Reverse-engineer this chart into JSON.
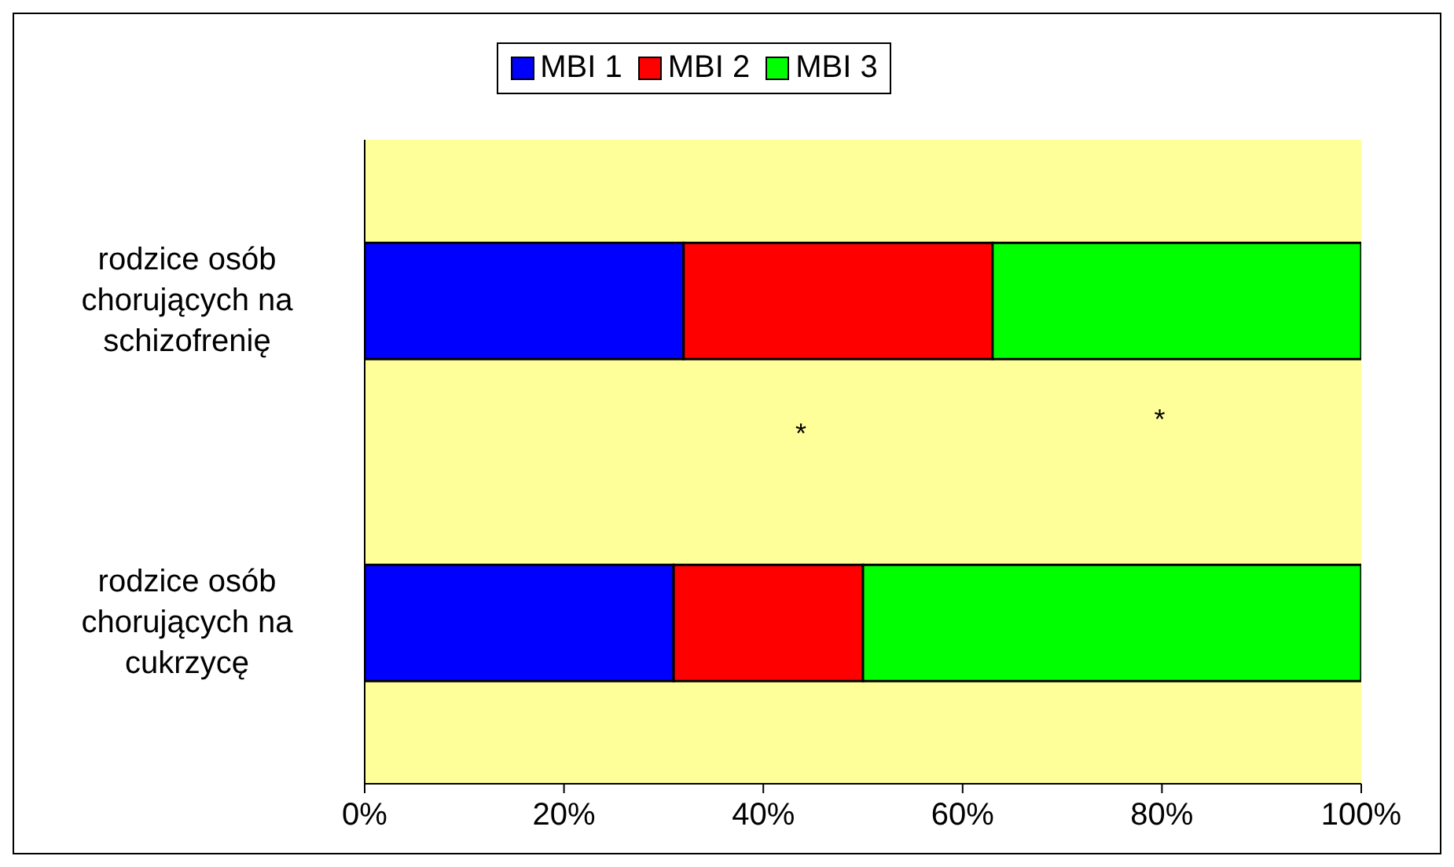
{
  "chart_data": {
    "type": "bar",
    "orientation": "horizontal",
    "stacked": true,
    "categories": [
      "rodzice osób chorujących na schizofrenię",
      "rodzice osób chorujących na cukrzycę"
    ],
    "series": [
      {
        "name": "MBI 1",
        "color": "#0000ff",
        "values": [
          32,
          31
        ]
      },
      {
        "name": "MBI 2",
        "color": "#ff0000",
        "values": [
          31,
          19
        ]
      },
      {
        "name": "MBI 3",
        "color": "#00ff00",
        "values": [
          37,
          50
        ]
      }
    ],
    "xlim": [
      0,
      100
    ],
    "xticks": [
      {
        "value": 0,
        "label": "0%"
      },
      {
        "value": 20,
        "label": "20%"
      },
      {
        "value": 40,
        "label": "40%"
      },
      {
        "value": 60,
        "label": "60%"
      },
      {
        "value": 80,
        "label": "80%"
      },
      {
        "value": 100,
        "label": "100%"
      }
    ],
    "grid": false,
    "legend": "top",
    "annotations": [
      "*",
      "*"
    ]
  }
}
